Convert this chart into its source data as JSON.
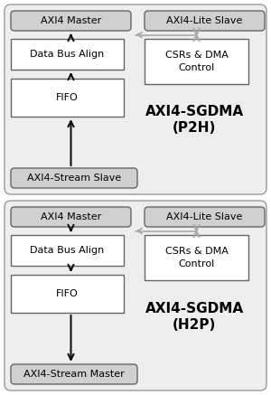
{
  "fig_width": 3.0,
  "fig_height": 4.37,
  "dpi": 100,
  "bg_color": "#ffffff",
  "outer_bg": "#eeeeee",
  "outer_edge": "#999999",
  "io_fill": "#d0d0d0",
  "io_edge": "#666666",
  "inner_fill": "#ffffff",
  "inner_edge": "#666666",
  "arrow_black": "#111111",
  "arrow_gray": "#aaaaaa",
  "diagrams": [
    {
      "title_line1": "AXI4-SGDMA",
      "title_line2": "(P2H)",
      "top_box": "AXI4 Master",
      "bottom_box": "AXI4-Stream Slave",
      "top_right_box": "AXI4-Lite Slave",
      "flow_down": false
    },
    {
      "title_line1": "AXI4-SGDMA",
      "title_line2": "(H2P)",
      "top_box": "AXI4 Master",
      "bottom_box": "AXI4-Stream Master",
      "top_right_box": "AXI4-Lite Slave",
      "flow_down": true
    }
  ]
}
